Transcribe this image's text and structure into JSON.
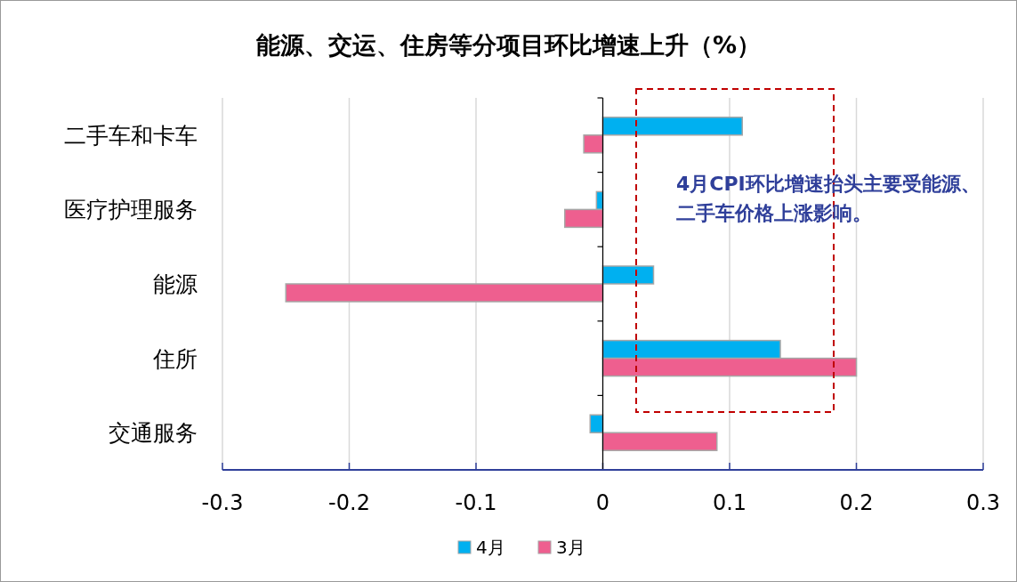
{
  "chart_data": {
    "type": "bar",
    "orientation": "horizontal",
    "title": "能源、交运、住房等分项目环比增速上升（%）",
    "categories": [
      "二手车和卡车",
      "医疗护理服务",
      "能源",
      "住所",
      "交通服务"
    ],
    "series": [
      {
        "name": "4月",
        "color": "#00b0f0",
        "values": [
          0.11,
          -0.005,
          0.04,
          0.14,
          -0.01
        ]
      },
      {
        "name": "3月",
        "color": "#ee5f8f",
        "values": [
          -0.015,
          -0.03,
          -0.25,
          0.2,
          0.09
        ]
      }
    ],
    "xlim": [
      -0.3,
      0.3
    ],
    "xticks": [
      -0.3,
      -0.2,
      -0.1,
      0,
      0.1,
      0.2,
      0.3
    ],
    "grid": "x",
    "legend": "bottom",
    "annotations": [
      "4月CPI环比增速抬头主要受能源、二手车价格上涨影响。"
    ]
  }
}
